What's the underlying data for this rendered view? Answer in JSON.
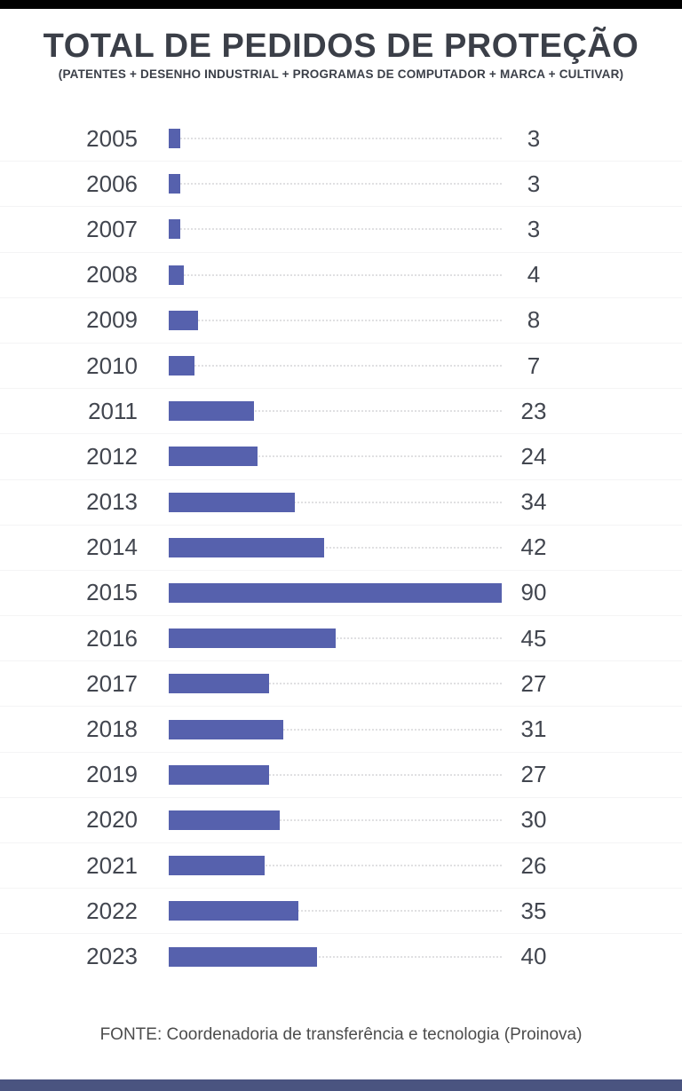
{
  "page": {
    "title": "TOTAL DE PEDIDOS DE PROTEÇÃO",
    "subtitle": "(PATENTES + DESENHO INDUSTRIAL + PROGRAMAS DE COMPUTADOR + MARCA + CULTIVAR)",
    "source": "FONTE: Coordenadoria de transferência e tecnologia (Proinova)"
  },
  "colors": {
    "bar": "#5661ad",
    "text_dark": "#3b3f48",
    "label": "#42464f",
    "top_bar": "#000000",
    "bottom_bar": "#4a5480",
    "leader_dots": "#e0e0e2",
    "source_text": "#4c4c4c"
  },
  "chart_data": {
    "type": "bar",
    "orientation": "horizontal",
    "title": "TOTAL DE PEDIDOS DE PROTEÇÃO",
    "subtitle": "(PATENTES + DESENHO INDUSTRIAL + PROGRAMAS DE COMPUTADOR + MARCA + CULTIVAR)",
    "categories": [
      "2005",
      "2006",
      "2007",
      "2008",
      "2009",
      "2010",
      "2011",
      "2012",
      "2013",
      "2014",
      "2015",
      "2016",
      "2017",
      "2018",
      "2019",
      "2020",
      "2021",
      "2022",
      "2023"
    ],
    "values": [
      3,
      3,
      3,
      4,
      8,
      7,
      23,
      24,
      34,
      42,
      90,
      45,
      27,
      31,
      27,
      30,
      26,
      35,
      40
    ],
    "xlabel": "",
    "ylabel": "",
    "xlim": [
      0,
      90
    ],
    "value_labels": true,
    "legend": false,
    "grid": "dotted-leader-lines",
    "source": "FONTE: Coordenadoria de transferência e tecnologia (Proinova)"
  }
}
